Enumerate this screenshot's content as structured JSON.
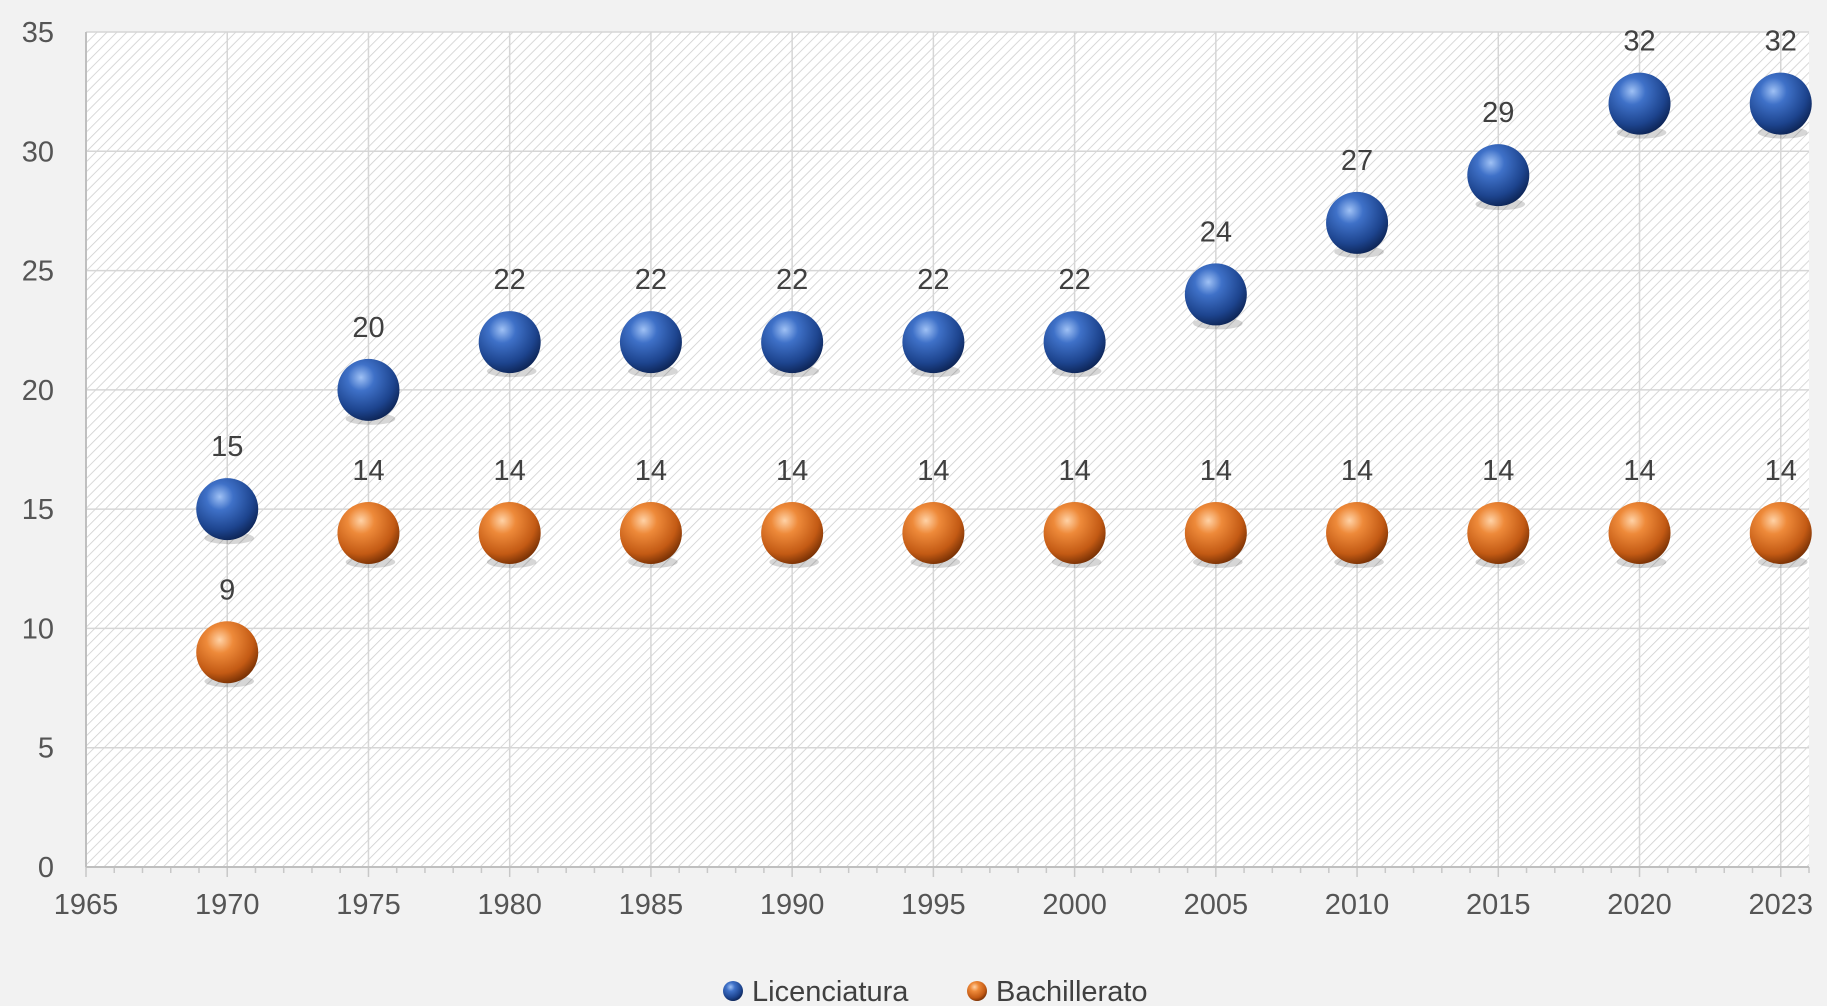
{
  "chart_data": {
    "type": "scatter",
    "title": "",
    "xlabel": "",
    "ylabel": "",
    "xlim": [
      1965,
      2026
    ],
    "ylim": [
      0,
      35
    ],
    "x_ticks": [
      "1965",
      "1970",
      "1975",
      "1980",
      "1985",
      "1990",
      "1995",
      "2000",
      "2005",
      "2010",
      "2015",
      "2020",
      "2023"
    ],
    "y_ticks": [
      "0",
      "5",
      "10",
      "15",
      "20",
      "25",
      "30",
      "35"
    ],
    "x": [
      1970,
      1975,
      1980,
      1985,
      1990,
      1995,
      2000,
      2005,
      2010,
      2015,
      2020,
      2025
    ],
    "series": [
      {
        "name": "Licenciatura",
        "color": "#2e5aa8",
        "values": [
          15,
          20,
          22,
          22,
          22,
          22,
          22,
          24,
          27,
          29,
          32,
          32
        ],
        "labels": [
          "15",
          "20",
          "22",
          "22",
          "22",
          "22",
          "22",
          "24",
          "27",
          "29",
          "32",
          "32"
        ]
      },
      {
        "name": "Bachillerato",
        "color": "#e07020",
        "values": [
          9,
          14,
          14,
          14,
          14,
          14,
          14,
          14,
          14,
          14,
          14,
          14
        ],
        "labels": [
          "9",
          "14",
          "14",
          "14",
          "14",
          "14",
          "14",
          "14",
          "14",
          "14",
          "14",
          "14"
        ]
      }
    ],
    "grid": true,
    "legend": "bottom-center",
    "marker": "sphere"
  }
}
